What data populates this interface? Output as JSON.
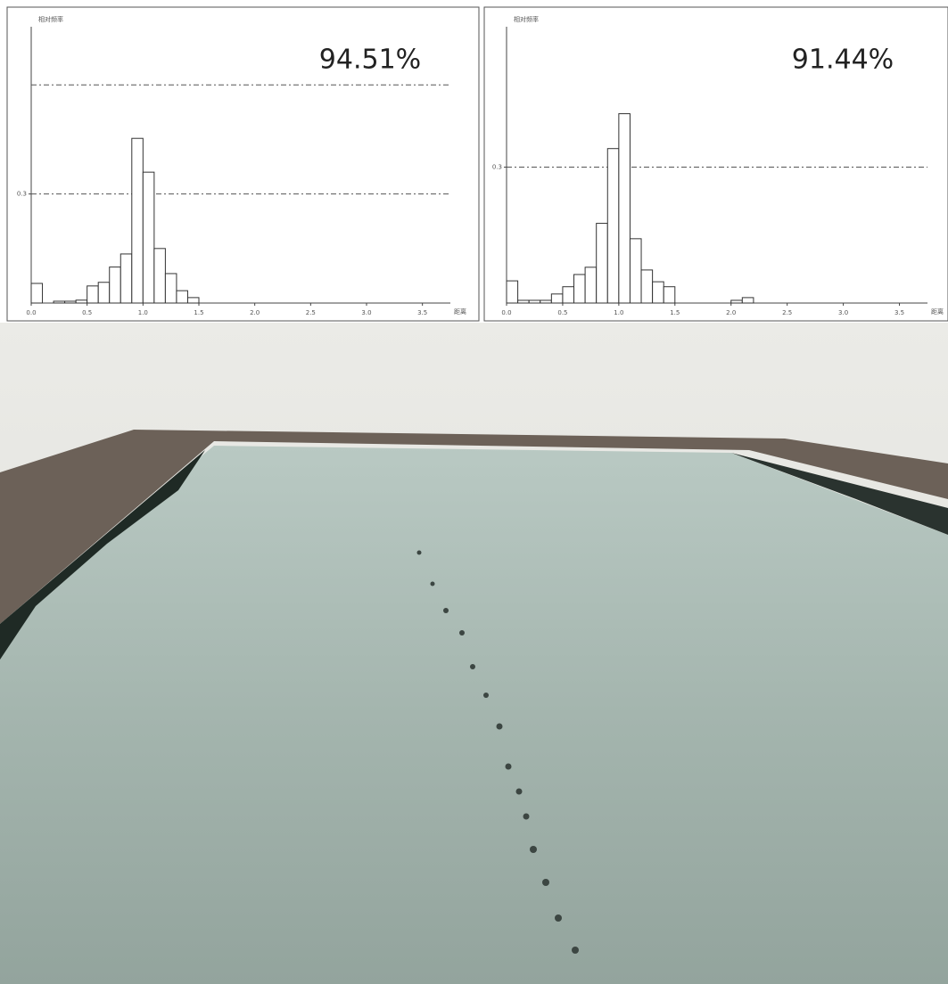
{
  "chart_data": [
    {
      "type": "histogram",
      "ylabel": "相对频率",
      "xlabel": "距离",
      "annotation": "94.51%",
      "bins": [
        0,
        0.1,
        0.2,
        0.3,
        0.4,
        0.5,
        0.6,
        0.7,
        0.8,
        0.9,
        1.0,
        1.1,
        1.2,
        1.3,
        1.4,
        1.5,
        1.6,
        1.7,
        1.8,
        1.9,
        2.0,
        2.1,
        2.2
      ],
      "values": [
        0.054,
        0,
        0.005,
        0.005,
        0.008,
        0.047,
        0.057,
        0.099,
        0.135,
        0.453,
        0.36,
        0.15,
        0.081,
        0.034,
        0.015,
        0,
        0,
        0,
        0,
        0,
        0,
        0
      ],
      "color": "#ffffff",
      "edgecolor": "#333333",
      "xlim": [
        0,
        3.75
      ],
      "ylim": [
        0,
        0.76
      ],
      "xticks": [
        {
          "value": 0,
          "label": "0.0"
        },
        0.5,
        {
          "value": 1,
          "label": "1.0"
        },
        1.5,
        {
          "value": 2,
          "label": "2.0"
        },
        2.5,
        {
          "value": 3,
          "label": "3.0"
        },
        3.5
      ],
      "yticks": [
        0.3
      ],
      "hlines": [
        0.3,
        0.6
      ]
    },
    {
      "type": "histogram",
      "ylabel": "相对频率",
      "xlabel": "距离",
      "annotation": "91.44%",
      "bins": [
        0,
        0.1,
        0.2,
        0.3,
        0.4,
        0.5,
        0.6,
        0.7,
        0.8,
        0.9,
        1.0,
        1.1,
        1.2,
        1.3,
        1.4,
        1.5,
        1.6,
        1.7,
        1.8,
        1.9,
        2.0,
        2.1,
        2.2
      ],
      "values": [
        0.049,
        0.006,
        0.006,
        0.006,
        0.02,
        0.036,
        0.063,
        0.079,
        0.176,
        0.341,
        0.418,
        0.142,
        0.073,
        0.047,
        0.036,
        0,
        0,
        0,
        0,
        0,
        0.006,
        0.012
      ],
      "color": "#ffffff",
      "edgecolor": "#333333",
      "xlim": [
        0,
        3.75
      ],
      "ylim": [
        0,
        0.61
      ],
      "xticks": [
        {
          "value": 0,
          "label": "0.0"
        },
        0.5,
        {
          "value": 1,
          "label": "1.0"
        },
        1.5,
        {
          "value": 2,
          "label": "2.0"
        },
        2.5,
        {
          "value": 3,
          "label": "3.0"
        },
        3.5
      ],
      "yticks": [
        0.3
      ],
      "hlines": [
        0.3
      ]
    }
  ]
}
